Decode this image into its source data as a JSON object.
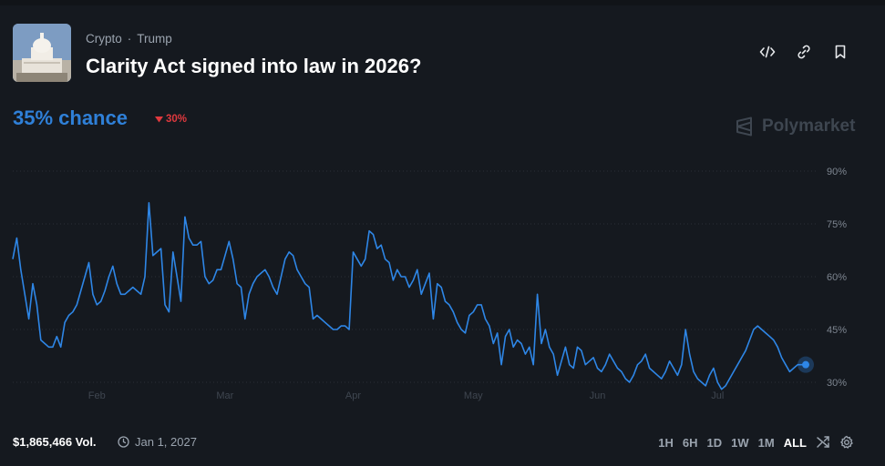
{
  "header": {
    "category": "Crypto",
    "tag": "Trump",
    "title": "Clarity Act signed into law in 2026?",
    "thumbnail_icon": "capitol-building-icon"
  },
  "summary": {
    "chance": "35% chance",
    "change": "30%",
    "change_direction": "down"
  },
  "brand": {
    "name": "Polymarket"
  },
  "toolbar": {
    "icons": [
      "code-embed-icon",
      "link-icon",
      "bookmark-icon"
    ]
  },
  "footer": {
    "volume": "$1,865,466 Vol.",
    "end_date": "Jan 1, 2027",
    "ranges": [
      "1H",
      "6H",
      "1D",
      "1W",
      "1M",
      "ALL"
    ],
    "active_range": "ALL"
  },
  "colors": {
    "line": "#2e86e6",
    "chance": "#2f80d8",
    "down": "#e0393e",
    "background": "#15191f",
    "grid": "#2a2f37"
  },
  "chart_data": {
    "type": "line",
    "x_tick_labels": [
      "Feb",
      "Mar",
      "Apr",
      "May",
      "Jun",
      "Jul"
    ],
    "y_tick_labels": [
      "90%",
      "75%",
      "60%",
      "45%",
      "30%"
    ],
    "y_ticks": [
      90,
      75,
      60,
      45,
      30
    ],
    "ylim": [
      30,
      90
    ],
    "xlim": [
      0,
      198
    ],
    "x_ticks": [
      21,
      53,
      85,
      115,
      146,
      176
    ],
    "grid": true,
    "series": [
      {
        "x": [
          0,
          1,
          2,
          3,
          4,
          5,
          6,
          7,
          8,
          9,
          10,
          11,
          12,
          13,
          14,
          15,
          16,
          17,
          18,
          19,
          20,
          21,
          22,
          23,
          24,
          25,
          26,
          27,
          28,
          29,
          30,
          31,
          32,
          33,
          34,
          35,
          36,
          37,
          38,
          39,
          40,
          41,
          42,
          43,
          44,
          45,
          46,
          47,
          48,
          49,
          50,
          51,
          52,
          53,
          54,
          55,
          56,
          57,
          58,
          59,
          60,
          61,
          62,
          63,
          64,
          65,
          66,
          67,
          68,
          69,
          70,
          71,
          72,
          73,
          74,
          75,
          76,
          77,
          78,
          79,
          80,
          81,
          82,
          83,
          84,
          85,
          86,
          87,
          88,
          89,
          90,
          91,
          92,
          93,
          94,
          95,
          96,
          97,
          98,
          99,
          100,
          101,
          102,
          103,
          104,
          105,
          106,
          107,
          108,
          109,
          110,
          111,
          112,
          113,
          114,
          115,
          116,
          117,
          118,
          119,
          120,
          121,
          122,
          123,
          124,
          125,
          126,
          127,
          128,
          129,
          130,
          131,
          132,
          133,
          134,
          135,
          136,
          137,
          138,
          139,
          140,
          141,
          142,
          143,
          144,
          145,
          146,
          147,
          148,
          149,
          150,
          151,
          152,
          153,
          154,
          155,
          156,
          157,
          158,
          159,
          160,
          161,
          162,
          163,
          164,
          165,
          166,
          167,
          168,
          169,
          170,
          171,
          172,
          173,
          174,
          175,
          176,
          177,
          178,
          179,
          180,
          181,
          182,
          183,
          184,
          185,
          186,
          187,
          188,
          189,
          190,
          191,
          192,
          193,
          194,
          195,
          196,
          197,
          198
        ],
        "y": [
          65,
          71,
          62,
          55,
          48,
          58,
          52,
          42,
          41,
          40,
          40,
          43,
          40,
          47,
          49,
          50,
          52,
          56,
          60,
          64,
          55,
          52,
          53,
          56,
          60,
          63,
          58,
          55,
          55,
          56,
          57,
          56,
          55,
          60,
          81,
          66,
          67,
          68,
          52,
          50,
          67,
          60,
          53,
          77,
          71,
          69,
          69,
          70,
          60,
          58,
          59,
          62,
          62,
          66,
          70,
          65,
          58,
          57,
          48,
          55,
          58,
          60,
          61,
          62,
          60,
          57,
          55,
          60,
          65,
          67,
          66,
          62,
          60,
          58,
          57,
          48,
          49,
          48,
          47,
          46,
          45,
          45,
          46,
          46,
          45,
          67,
          65,
          63,
          65,
          73,
          72,
          68,
          69,
          65,
          64,
          59,
          62,
          60,
          60,
          57,
          59,
          62,
          55,
          58,
          61,
          48,
          58,
          57,
          53,
          52,
          50,
          47,
          45,
          44,
          49,
          50,
          52,
          52,
          48,
          46,
          41,
          44,
          35,
          43,
          45,
          40,
          42,
          41,
          38,
          40,
          35,
          55,
          41,
          45,
          40,
          38,
          32,
          36,
          40,
          35,
          34,
          40,
          39,
          35,
          36,
          37,
          34,
          33,
          35,
          38,
          36,
          34,
          33,
          31,
          30,
          32,
          35,
          36,
          38,
          34,
          33,
          32,
          31,
          33,
          36,
          34,
          32,
          35,
          45,
          38,
          33,
          31,
          30,
          29,
          32,
          34,
          30,
          28,
          29,
          31,
          33,
          35,
          37,
          39,
          42,
          45,
          46,
          45,
          44,
          43,
          42,
          40,
          37,
          35,
          33,
          34,
          35,
          35,
          35
        ],
        "y_note_ignored": true
      }
    ]
  }
}
